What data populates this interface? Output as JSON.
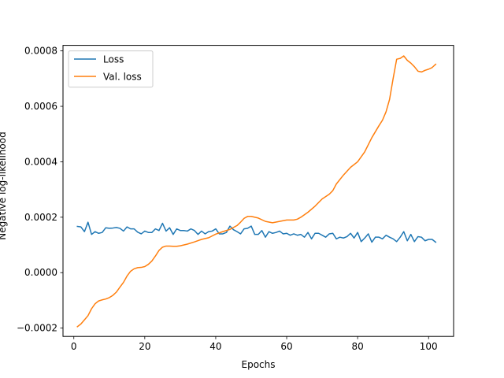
{
  "chart_data": {
    "type": "line",
    "title": "",
    "xlabel": "Epochs",
    "ylabel": "Negative log-likelihood",
    "xlim": [
      -3.05,
      107.05
    ],
    "ylim": [
      -0.00023,
      0.00082
    ],
    "xticks": [
      0,
      20,
      40,
      60,
      80,
      100
    ],
    "yticks": [
      -0.0002,
      0.0,
      0.0002,
      0.0004,
      0.0006,
      0.0008
    ],
    "ytick_labels": [
      "−0.0002",
      "0.0000",
      "0.0002",
      "0.0004",
      "0.0006",
      "0.0008"
    ],
    "grid": false,
    "legend": "top-left",
    "series": [
      {
        "name": "Loss",
        "color": "#1f77b4",
        "anchors": [
          [
            1,
            0.000167
          ],
          [
            2,
            0.000165
          ],
          [
            3,
            0.000148
          ],
          [
            4,
            0.000182
          ],
          [
            5,
            0.000138
          ],
          [
            6,
            0.000148
          ],
          [
            7,
            0.000142
          ],
          [
            8,
            0.000145
          ],
          [
            9,
            0.000162
          ],
          [
            10,
            0.00016
          ],
          [
            11,
            0.000161
          ],
          [
            12,
            0.000163
          ],
          [
            13,
            0.00016
          ],
          [
            14,
            0.00015
          ],
          [
            15,
            0.000165
          ],
          [
            16,
            0.000158
          ],
          [
            17,
            0.000158
          ],
          [
            18,
            0.000146
          ],
          [
            19,
            0.00014
          ],
          [
            20,
            0.00015
          ],
          [
            21,
            0.000145
          ],
          [
            22,
            0.000145
          ],
          [
            23,
            0.000158
          ],
          [
            24,
            0.000152
          ],
          [
            25,
            0.000178
          ],
          [
            26,
            0.00015
          ],
          [
            27,
            0.000162
          ],
          [
            28,
            0.000138
          ],
          [
            29,
            0.000158
          ],
          [
            30,
            0.000152
          ],
          [
            31,
            0.000152
          ],
          [
            32,
            0.00015
          ],
          [
            33,
            0.000158
          ],
          [
            34,
            0.000152
          ],
          [
            35,
            0.000138
          ],
          [
            36,
            0.00015
          ],
          [
            37,
            0.00014
          ],
          [
            38,
            0.000148
          ],
          [
            39,
            0.00015
          ],
          [
            40,
            0.000158
          ],
          [
            41,
            0.00014
          ],
          [
            42,
            0.00014
          ],
          [
            43,
            0.000145
          ],
          [
            44,
            0.000168
          ],
          [
            45,
            0.000155
          ],
          [
            46,
            0.000148
          ],
          [
            47,
            0.00014
          ],
          [
            48,
            0.000158
          ],
          [
            49,
            0.00016
          ],
          [
            50,
            0.000168
          ],
          [
            51,
            0.000138
          ],
          [
            52,
            0.000138
          ],
          [
            53,
            0.000152
          ],
          [
            54,
            0.000128
          ],
          [
            55,
            0.000148
          ],
          [
            56,
            0.000142
          ],
          [
            57,
            0.000145
          ],
          [
            58,
            0.00015
          ],
          [
            59,
            0.00014
          ],
          [
            60,
            0.000142
          ],
          [
            61,
            0.000135
          ],
          [
            62,
            0.00014
          ],
          [
            63,
            0.000135
          ],
          [
            64,
            0.000138
          ],
          [
            65,
            0.000128
          ],
          [
            66,
            0.000145
          ],
          [
            67,
            0.000122
          ],
          [
            68,
            0.000142
          ],
          [
            69,
            0.000142
          ],
          [
            70,
            0.000135
          ],
          [
            71,
            0.000128
          ],
          [
            72,
            0.00014
          ],
          [
            73,
            0.000142
          ],
          [
            74,
            0.000122
          ],
          [
            75,
            0.000128
          ],
          [
            76,
            0.000125
          ],
          [
            77,
            0.00013
          ],
          [
            78,
            0.000142
          ],
          [
            79,
            0.000125
          ],
          [
            80,
            0.000145
          ],
          [
            81,
            0.000112
          ],
          [
            82,
            0.000125
          ],
          [
            83,
            0.00014
          ],
          [
            84,
            0.00011
          ],
          [
            85,
            0.000128
          ],
          [
            86,
            0.000128
          ],
          [
            87,
            0.000122
          ],
          [
            88,
            0.000135
          ],
          [
            89,
            0.000128
          ],
          [
            90,
            0.000122
          ],
          [
            91,
            0.000112
          ],
          [
            92,
            0.000128
          ],
          [
            93,
            0.000148
          ],
          [
            94,
            0.000115
          ],
          [
            95,
            0.000138
          ],
          [
            96,
            0.000112
          ],
          [
            97,
            0.00013
          ],
          [
            98,
            0.000128
          ],
          [
            99,
            0.000115
          ],
          [
            100,
            0.00012
          ],
          [
            101,
            0.00012
          ],
          [
            102,
            0.00011
          ]
        ]
      },
      {
        "name": "Val. loss",
        "color": "#ff7f0e",
        "anchors": [
          [
            1,
            -0.000195
          ],
          [
            2,
            -0.000185
          ],
          [
            3,
            -0.00017
          ],
          [
            4,
            -0.000155
          ],
          [
            5,
            -0.00013
          ],
          [
            6,
            -0.000112
          ],
          [
            7,
            -0.000102
          ],
          [
            8,
            -9.8e-05
          ],
          [
            9,
            -9.5e-05
          ],
          [
            10,
            -9e-05
          ],
          [
            11,
            -8.2e-05
          ],
          [
            12,
            -7e-05
          ],
          [
            13,
            -5.2e-05
          ],
          [
            14,
            -3.5e-05
          ],
          [
            15,
            -1.2e-05
          ],
          [
            16,
            5e-06
          ],
          [
            17,
            1.4e-05
          ],
          [
            18,
            1.8e-05
          ],
          [
            19,
            1.9e-05
          ],
          [
            20,
            2.2e-05
          ],
          [
            21,
            3e-05
          ],
          [
            22,
            4.2e-05
          ],
          [
            23,
            6e-05
          ],
          [
            24,
            8e-05
          ],
          [
            25,
            9.2e-05
          ],
          [
            26,
            9.6e-05
          ],
          [
            27,
            9.6e-05
          ],
          [
            28,
            9.5e-05
          ],
          [
            29,
            9.5e-05
          ],
          [
            30,
            9.7e-05
          ],
          [
            32,
            0.000103
          ],
          [
            34,
            0.000111
          ],
          [
            36,
            0.00012
          ],
          [
            38,
            0.000126
          ],
          [
            40,
            0.000139
          ],
          [
            42,
            0.000148
          ],
          [
            44,
            0.000156
          ],
          [
            46,
            0.00017
          ],
          [
            47,
            0.000182
          ],
          [
            48,
            0.000196
          ],
          [
            49,
            0.000203
          ],
          [
            50,
            0.000203
          ],
          [
            52,
            0.000197
          ],
          [
            54,
            0.000185
          ],
          [
            56,
            0.00018
          ],
          [
            58,
            0.000185
          ],
          [
            60,
            0.00019
          ],
          [
            62,
            0.00019
          ],
          [
            63,
            0.000193
          ],
          [
            64,
            0.0002
          ],
          [
            66,
            0.000218
          ],
          [
            68,
            0.00024
          ],
          [
            70,
            0.000266
          ],
          [
            72,
            0.000283
          ],
          [
            73,
            0.000296
          ],
          [
            74,
            0.00032
          ],
          [
            76,
            0.000352
          ],
          [
            78,
            0.00038
          ],
          [
            80,
            0.0004
          ],
          [
            82,
            0.000436
          ],
          [
            84,
            0.000487
          ],
          [
            86,
            0.00053
          ],
          [
            87,
            0.00055
          ],
          [
            88,
            0.00058
          ],
          [
            89,
            0.000625
          ],
          [
            90,
            0.0007
          ],
          [
            91,
            0.00077
          ],
          [
            92,
            0.000773
          ],
          [
            93,
            0.000782
          ],
          [
            94,
            0.000766
          ],
          [
            95,
            0.000756
          ],
          [
            96,
            0.000743
          ],
          [
            97,
            0.000727
          ],
          [
            98,
            0.000724
          ],
          [
            99,
            0.00073
          ],
          [
            100,
            0.000734
          ],
          [
            101,
            0.00074
          ],
          [
            102,
            0.000752
          ]
        ]
      }
    ]
  }
}
